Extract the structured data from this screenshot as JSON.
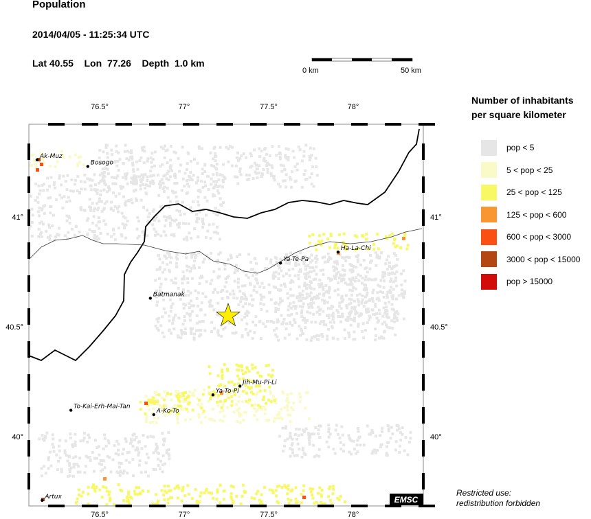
{
  "header": {
    "title": "Population",
    "datetime": "2014/04/05 - 11:25:34 UTC",
    "lat_label": "Lat",
    "lat": "40.55",
    "lon_label": "Lon",
    "lon": "77.26",
    "depth_label": "Depth",
    "depth": "1.0 km"
  },
  "scale_bar": {
    "start": "0 km",
    "end": "50 km"
  },
  "axes": {
    "lon_ticks": [
      "76.5°",
      "77°",
      "77.5°",
      "78°"
    ],
    "lon_values": [
      76.5,
      77,
      77.5,
      78
    ],
    "lat_ticks": [
      "41°",
      "40.5°",
      "40°"
    ],
    "lat_values": [
      41,
      40.5,
      40
    ]
  },
  "epicenter": {
    "lon": 77.26,
    "lat": 40.55,
    "color": "#ffee00"
  },
  "cities": [
    {
      "name": "Ak-Muz",
      "lon": 76.13,
      "lat": 41.26
    },
    {
      "name": "Bosogo",
      "lon": 76.43,
      "lat": 41.23
    },
    {
      "name": "Batmanak",
      "lon": 76.8,
      "lat": 40.63
    },
    {
      "name": "Ya-Te-Pa",
      "lon": 77.57,
      "lat": 40.79
    },
    {
      "name": "Ha-La-Chi",
      "lon": 77.91,
      "lat": 40.84
    },
    {
      "name": "Jih-Mu-Pi-Li",
      "lon": 77.33,
      "lat": 40.23
    },
    {
      "name": "Ya-To-Pi",
      "lon": 77.17,
      "lat": 40.19
    },
    {
      "name": "A-Ko-To",
      "lon": 76.82,
      "lat": 40.1
    },
    {
      "name": "To-Kai-Erh-Mai-Tan",
      "lon": 76.33,
      "lat": 40.12
    },
    {
      "name": "Artux",
      "lon": 76.16,
      "lat": 39.71
    }
  ],
  "legend": {
    "title_line1": "Number of inhabitants",
    "title_line2": "per square kilometer",
    "items": [
      {
        "label": "pop < 5",
        "color": "#e6e6e6"
      },
      {
        "label": "5 < pop < 25",
        "color": "#fafac8"
      },
      {
        "label": "25 < pop < 125",
        "color": "#f8f864"
      },
      {
        "label": "125 < pop < 600",
        "color": "#fa9632"
      },
      {
        "label": "600 < pop < 3000",
        "color": "#fa5014"
      },
      {
        "label": "3000 < pop < 15000",
        "color": "#b44614"
      },
      {
        "label": "pop > 15000",
        "color": "#d20a0a"
      }
    ]
  },
  "logo": "EMSC",
  "note": {
    "line1": "Restricted use:",
    "line2": "redistribution forbidden"
  }
}
